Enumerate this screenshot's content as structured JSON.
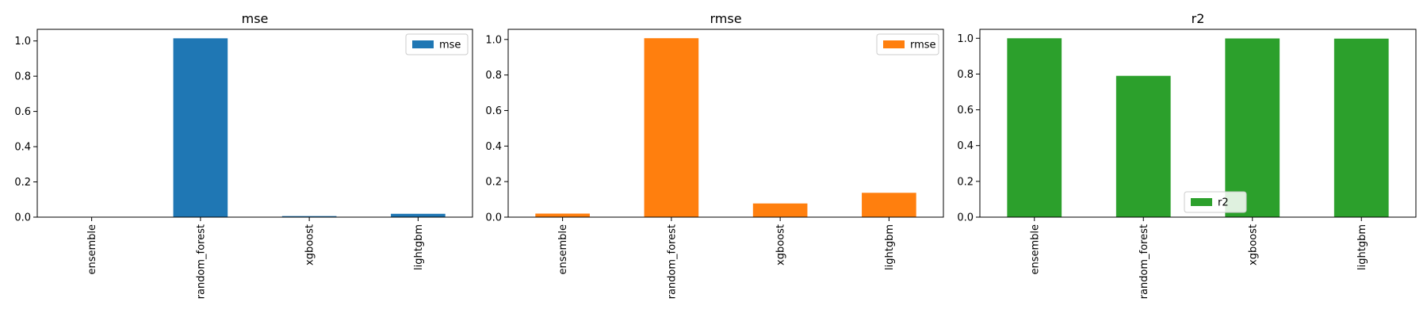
{
  "chart_data": [
    {
      "type": "bar",
      "title": "mse",
      "categories": [
        "ensemble",
        "random_forest",
        "xgboost",
        "lightgbm"
      ],
      "series": [
        {
          "name": "mse",
          "color": "#1f77b4",
          "values": [
            0.0004,
            1.015,
            0.006,
            0.019
          ]
        }
      ],
      "ylim": [
        0,
        1.066
      ],
      "yticks": [
        "0.0",
        "0.2",
        "0.4",
        "0.6",
        "0.8",
        "1.0"
      ],
      "legend_position": "top-right",
      "grid": false
    },
    {
      "type": "bar",
      "title": "rmse",
      "categories": [
        "ensemble",
        "random_forest",
        "xgboost",
        "lightgbm"
      ],
      "series": [
        {
          "name": "rmse",
          "color": "#ff7f0e",
          "values": [
            0.02,
            1.007,
            0.077,
            0.137
          ]
        }
      ],
      "ylim": [
        0,
        1.057
      ],
      "yticks": [
        "0.0",
        "0.2",
        "0.4",
        "0.6",
        "0.8",
        "1.0"
      ],
      "legend_position": "top-right",
      "grid": false
    },
    {
      "type": "bar",
      "title": "r2",
      "categories": [
        "ensemble",
        "random_forest",
        "xgboost",
        "lightgbm"
      ],
      "series": [
        {
          "name": "r2",
          "color": "#2ca02c",
          "values": [
            1.0,
            0.79,
            0.999,
            0.998
          ]
        }
      ],
      "ylim": [
        0,
        1.05
      ],
      "yticks": [
        "0.0",
        "0.2",
        "0.4",
        "0.6",
        "0.8",
        "1.0"
      ],
      "legend_position": "lower-center",
      "grid": false
    }
  ]
}
